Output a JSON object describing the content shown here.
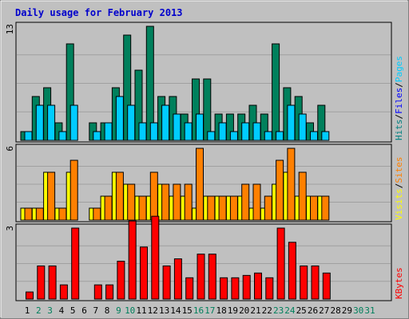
{
  "chart_data": {
    "type": "bar",
    "title": "Daily usage for February 2013",
    "x": [
      "1",
      "2",
      "3",
      "4",
      "5",
      "6",
      "7",
      "8",
      "9",
      "10",
      "11",
      "12",
      "13",
      "14",
      "15",
      "16",
      "17",
      "18",
      "19",
      "20",
      "21",
      "22",
      "23",
      "24",
      "25",
      "26",
      "27",
      "28",
      "29",
      "30",
      "31"
    ],
    "weekend_days": [
      "2",
      "3",
      "9",
      "10",
      "16",
      "17",
      "23",
      "24",
      "30",
      "31"
    ],
    "panels": [
      {
        "name": "hits_pages_files",
        "ymax": "13",
        "legend": [
          {
            "text": "Hits",
            "color": "#008080"
          },
          {
            "text": "/",
            "color": "#000000"
          },
          {
            "text": "Files",
            "color": "#0000ff"
          },
          {
            "text": "/",
            "color": "#000000"
          },
          {
            "text": "Pages",
            "color": "#00ccff"
          }
        ],
        "series": [
          {
            "name": "Hits",
            "color": "#00805c",
            "values": [
              1,
              5,
              6,
              2,
              11,
              0,
              2,
              2,
              6,
              12,
              8,
              13,
              5,
              5,
              3,
              7,
              7,
              3,
              3,
              3,
              4,
              3,
              11,
              6,
              5,
              2,
              4,
              null,
              null,
              null,
              null
            ]
          },
          {
            "name": "Pages",
            "color": "#00ccff",
            "values": [
              1,
              4,
              4,
              1,
              4,
              0,
              1,
              2,
              5,
              4,
              2,
              2,
              4,
              3,
              2,
              3,
              1,
              2,
              1,
              2,
              2,
              1,
              1,
              4,
              3,
              1,
              1,
              null,
              null,
              null,
              null
            ]
          }
        ]
      },
      {
        "name": "visits_sites",
        "ymax": "6",
        "legend": [
          {
            "text": "Visits",
            "color": "#ffff00"
          },
          {
            "text": "/",
            "color": "#000000"
          },
          {
            "text": "Sites",
            "color": "#ff8000"
          }
        ],
        "series": [
          {
            "name": "Visits",
            "color": "#ffff00",
            "values": [
              1,
              1,
              4,
              1,
              4,
              0,
              1,
              2,
              4,
              3,
              2,
              2,
              3,
              2,
              2,
              1,
              2,
              2,
              2,
              2,
              1,
              1,
              3,
              4,
              2,
              2,
              2,
              null,
              null,
              null,
              null
            ]
          },
          {
            "name": "Sites",
            "color": "#ff8000",
            "values": [
              1,
              1,
              4,
              1,
              5,
              0,
              1,
              2,
              4,
              3,
              2,
              4,
              3,
              3,
              3,
              6,
              2,
              2,
              2,
              3,
              3,
              2,
              5,
              6,
              4,
              2,
              2,
              null,
              null,
              null,
              null
            ]
          }
        ]
      },
      {
        "name": "kbytes",
        "ymax": "3",
        "legend": [
          {
            "text": "KBytes",
            "color": "#ff0000"
          }
        ],
        "series": [
          {
            "name": "KBytes",
            "color": "#ff0000",
            "values": [
              0.3,
              1.4,
              1.4,
              0.6,
              3.0,
              0,
              0.6,
              0.6,
              1.6,
              3.3,
              2.2,
              3.5,
              1.4,
              1.7,
              0.9,
              1.9,
              1.9,
              0.9,
              0.9,
              1.0,
              1.1,
              0.9,
              3.0,
              2.4,
              1.4,
              1.4,
              1.1,
              null,
              null,
              null,
              null
            ]
          }
        ]
      }
    ]
  }
}
